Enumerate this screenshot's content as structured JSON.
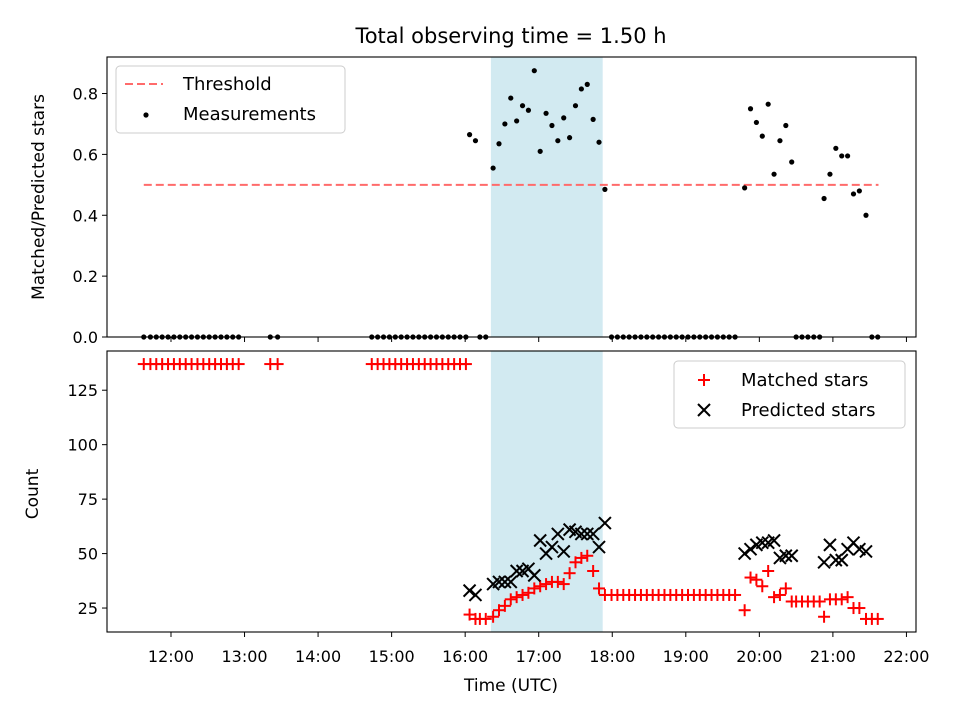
{
  "chart_data": [
    {
      "type": "scatter",
      "title": "Total observing time = 1.50 h",
      "ylabel": "Matched/Predicted stars",
      "xlabel": "",
      "x_unit": "hours (UTC)",
      "xlim": [
        11.13,
        22.13
      ],
      "ylim": [
        0.0,
        0.92
      ],
      "yticks": [
        0.0,
        0.2,
        0.4,
        0.6,
        0.8
      ],
      "ytick_labels": [
        "0.0",
        "0.2",
        "0.4",
        "0.6",
        "0.8"
      ],
      "legend": {
        "placement": "upper-left",
        "entries": [
          "Threshold",
          "Measurements"
        ]
      },
      "shaded_span": {
        "x": [
          16.35,
          17.87
        ],
        "color": "#add8e6"
      },
      "threshold": {
        "name": "Threshold",
        "y": 0.5,
        "x": [
          11.63,
          21.62
        ],
        "color": "#ff6b6b",
        "style": "dashed"
      },
      "series": [
        {
          "name": "Measurements",
          "color": "#000000",
          "points": [
            [
              11.63,
              0
            ],
            [
              11.72,
              0
            ],
            [
              11.8,
              0
            ],
            [
              11.88,
              0
            ],
            [
              11.96,
              0
            ],
            [
              12.04,
              0
            ],
            [
              12.12,
              0
            ],
            [
              12.2,
              0
            ],
            [
              12.28,
              0
            ],
            [
              12.36,
              0
            ],
            [
              12.44,
              0
            ],
            [
              12.52,
              0
            ],
            [
              12.6,
              0
            ],
            [
              12.68,
              0
            ],
            [
              12.76,
              0
            ],
            [
              12.84,
              0
            ],
            [
              12.92,
              0
            ],
            [
              13.35,
              0
            ],
            [
              13.45,
              0
            ],
            [
              14.73,
              0
            ],
            [
              14.81,
              0
            ],
            [
              14.89,
              0
            ],
            [
              14.97,
              0
            ],
            [
              15.05,
              0
            ],
            [
              15.13,
              0
            ],
            [
              15.21,
              0
            ],
            [
              15.29,
              0
            ],
            [
              15.37,
              0
            ],
            [
              15.45,
              0
            ],
            [
              15.53,
              0
            ],
            [
              15.61,
              0
            ],
            [
              15.69,
              0
            ],
            [
              15.77,
              0
            ],
            [
              15.85,
              0
            ],
            [
              15.93,
              0
            ],
            [
              16.01,
              0
            ],
            [
              16.2,
              0
            ],
            [
              16.28,
              0
            ],
            [
              16.06,
              0.665
            ],
            [
              16.14,
              0.645
            ],
            [
              16.38,
              0.555
            ],
            [
              16.46,
              0.635
            ],
            [
              16.54,
              0.7
            ],
            [
              16.62,
              0.785
            ],
            [
              16.7,
              0.71
            ],
            [
              16.78,
              0.76
            ],
            [
              16.86,
              0.745
            ],
            [
              16.94,
              0.875
            ],
            [
              17.02,
              0.61
            ],
            [
              17.1,
              0.735
            ],
            [
              17.18,
              0.695
            ],
            [
              17.26,
              0.645
            ],
            [
              17.34,
              0.72
            ],
            [
              17.42,
              0.655
            ],
            [
              17.5,
              0.76
            ],
            [
              17.58,
              0.815
            ],
            [
              17.66,
              0.83
            ],
            [
              17.74,
              0.715
            ],
            [
              17.82,
              0.64
            ],
            [
              17.9,
              0.485
            ],
            [
              17.99,
              0
            ],
            [
              18.07,
              0
            ],
            [
              18.15,
              0
            ],
            [
              18.23,
              0
            ],
            [
              18.31,
              0
            ],
            [
              18.39,
              0
            ],
            [
              18.47,
              0
            ],
            [
              18.55,
              0
            ],
            [
              18.63,
              0
            ],
            [
              18.71,
              0
            ],
            [
              18.79,
              0
            ],
            [
              18.87,
              0
            ],
            [
              18.95,
              0
            ],
            [
              19.03,
              0
            ],
            [
              19.11,
              0
            ],
            [
              19.19,
              0
            ],
            [
              19.27,
              0
            ],
            [
              19.35,
              0
            ],
            [
              19.43,
              0
            ],
            [
              19.51,
              0
            ],
            [
              19.59,
              0
            ],
            [
              19.67,
              0
            ],
            [
              19.8,
              0.49
            ],
            [
              19.88,
              0.75
            ],
            [
              19.96,
              0.705
            ],
            [
              20.04,
              0.66
            ],
            [
              20.12,
              0.765
            ],
            [
              20.2,
              0.535
            ],
            [
              20.28,
              0.645
            ],
            [
              20.36,
              0.695
            ],
            [
              20.44,
              0.575
            ],
            [
              20.5,
              0
            ],
            [
              20.58,
              0
            ],
            [
              20.66,
              0
            ],
            [
              20.74,
              0
            ],
            [
              20.82,
              0
            ],
            [
              20.88,
              0.455
            ],
            [
              20.96,
              0.535
            ],
            [
              21.04,
              0.62
            ],
            [
              21.12,
              0.595
            ],
            [
              21.2,
              0.595
            ],
            [
              21.28,
              0.47
            ],
            [
              21.36,
              0.48
            ],
            [
              21.45,
              0.4
            ],
            [
              21.53,
              0
            ],
            [
              21.61,
              0
            ]
          ]
        }
      ]
    },
    {
      "type": "scatter",
      "title": "",
      "ylabel": "Count",
      "xlabel": "Time (UTC)",
      "x_unit": "hours (UTC)",
      "xlim": [
        11.13,
        22.13
      ],
      "ylim": [
        14,
        143
      ],
      "yticks": [
        25,
        50,
        75,
        100,
        125
      ],
      "ytick_labels": [
        "25",
        "50",
        "75",
        "100",
        "125"
      ],
      "xticks": [
        12,
        13,
        14,
        15,
        16,
        17,
        18,
        19,
        20,
        21,
        22
      ],
      "xtick_labels": [
        "12:00",
        "13:00",
        "14:00",
        "15:00",
        "16:00",
        "17:00",
        "18:00",
        "19:00",
        "20:00",
        "21:00",
        "22:00"
      ],
      "legend": {
        "placement": "upper-right",
        "entries": [
          "Matched stars",
          "Predicted stars"
        ]
      },
      "shaded_span": {
        "x": [
          16.35,
          17.87
        ],
        "color": "#add8e6"
      },
      "series": [
        {
          "name": "Matched stars",
          "marker": "plus",
          "color": "#ff0000",
          "points": [
            [
              11.63,
              137
            ],
            [
              11.72,
              137
            ],
            [
              11.8,
              137
            ],
            [
              11.88,
              137
            ],
            [
              11.96,
              137
            ],
            [
              12.04,
              137
            ],
            [
              12.12,
              137
            ],
            [
              12.2,
              137
            ],
            [
              12.28,
              137
            ],
            [
              12.36,
              137
            ],
            [
              12.44,
              137
            ],
            [
              12.52,
              137
            ],
            [
              12.6,
              137
            ],
            [
              12.68,
              137
            ],
            [
              12.76,
              137
            ],
            [
              12.84,
              137
            ],
            [
              12.92,
              137
            ],
            [
              13.35,
              137
            ],
            [
              13.45,
              137
            ],
            [
              14.73,
              137
            ],
            [
              14.81,
              137
            ],
            [
              14.89,
              137
            ],
            [
              14.97,
              137
            ],
            [
              15.05,
              137
            ],
            [
              15.13,
              137
            ],
            [
              15.21,
              137
            ],
            [
              15.29,
              137
            ],
            [
              15.37,
              137
            ],
            [
              15.45,
              137
            ],
            [
              15.53,
              137
            ],
            [
              15.61,
              137
            ],
            [
              15.69,
              137
            ],
            [
              15.77,
              137
            ],
            [
              15.85,
              137
            ],
            [
              15.93,
              137
            ],
            [
              16.01,
              137
            ],
            [
              16.06,
              22
            ],
            [
              16.14,
              20
            ],
            [
              16.2,
              20
            ],
            [
              16.28,
              20
            ],
            [
              16.38,
              21
            ],
            [
              16.46,
              24
            ],
            [
              16.54,
              26
            ],
            [
              16.62,
              29
            ],
            [
              16.7,
              30
            ],
            [
              16.78,
              31
            ],
            [
              16.86,
              32
            ],
            [
              16.94,
              34
            ],
            [
              17.02,
              35
            ],
            [
              17.1,
              36
            ],
            [
              17.18,
              37
            ],
            [
              17.26,
              37
            ],
            [
              17.34,
              36
            ],
            [
              17.42,
              41
            ],
            [
              17.5,
              46
            ],
            [
              17.58,
              48
            ],
            [
              17.66,
              49
            ],
            [
              17.74,
              42
            ],
            [
              17.82,
              34
            ],
            [
              17.9,
              31
            ],
            [
              17.99,
              31
            ],
            [
              18.07,
              31
            ],
            [
              18.15,
              31
            ],
            [
              18.23,
              31
            ],
            [
              18.31,
              31
            ],
            [
              18.39,
              31
            ],
            [
              18.47,
              31
            ],
            [
              18.55,
              31
            ],
            [
              18.63,
              31
            ],
            [
              18.71,
              31
            ],
            [
              18.79,
              31
            ],
            [
              18.87,
              31
            ],
            [
              18.95,
              31
            ],
            [
              19.03,
              31
            ],
            [
              19.11,
              31
            ],
            [
              19.19,
              31
            ],
            [
              19.27,
              31
            ],
            [
              19.35,
              31
            ],
            [
              19.43,
              31
            ],
            [
              19.51,
              31
            ],
            [
              19.59,
              31
            ],
            [
              19.67,
              31
            ],
            [
              19.8,
              24
            ],
            [
              19.88,
              39
            ],
            [
              19.96,
              38
            ],
            [
              20.04,
              35
            ],
            [
              20.12,
              42
            ],
            [
              20.2,
              30
            ],
            [
              20.28,
              31
            ],
            [
              20.36,
              34
            ],
            [
              20.44,
              28
            ],
            [
              20.5,
              28
            ],
            [
              20.58,
              28
            ],
            [
              20.66,
              28
            ],
            [
              20.74,
              28
            ],
            [
              20.82,
              28
            ],
            [
              20.88,
              21
            ],
            [
              20.96,
              29
            ],
            [
              21.04,
              29
            ],
            [
              21.12,
              29
            ],
            [
              21.2,
              30
            ],
            [
              21.28,
              25
            ],
            [
              21.36,
              25
            ],
            [
              21.45,
              20
            ],
            [
              21.53,
              20
            ],
            [
              21.61,
              20
            ]
          ]
        },
        {
          "name": "Predicted stars",
          "marker": "x",
          "color": "#000000",
          "points": [
            [
              16.06,
              33
            ],
            [
              16.14,
              31
            ],
            [
              16.38,
              36
            ],
            [
              16.46,
              37
            ],
            [
              16.54,
              37
            ],
            [
              16.62,
              37
            ],
            [
              16.7,
              42
            ],
            [
              16.78,
              42
            ],
            [
              16.86,
              43
            ],
            [
              16.94,
              40
            ],
            [
              17.02,
              56
            ],
            [
              17.1,
              50
            ],
            [
              17.18,
              53
            ],
            [
              17.26,
              59
            ],
            [
              17.34,
              51
            ],
            [
              17.42,
              61
            ],
            [
              17.5,
              60
            ],
            [
              17.58,
              59
            ],
            [
              17.66,
              59
            ],
            [
              17.74,
              59
            ],
            [
              17.82,
              53
            ],
            [
              17.9,
              64
            ],
            [
              19.8,
              50
            ],
            [
              19.88,
              52
            ],
            [
              19.96,
              54
            ],
            [
              20.04,
              55
            ],
            [
              20.12,
              55
            ],
            [
              20.2,
              56
            ],
            [
              20.28,
              48
            ],
            [
              20.36,
              49
            ],
            [
              20.44,
              49
            ],
            [
              20.88,
              46
            ],
            [
              20.96,
              54
            ],
            [
              21.04,
              47
            ],
            [
              21.12,
              47
            ],
            [
              21.2,
              52
            ],
            [
              21.28,
              55
            ],
            [
              21.36,
              52
            ],
            [
              21.45,
              51
            ]
          ]
        }
      ]
    }
  ]
}
